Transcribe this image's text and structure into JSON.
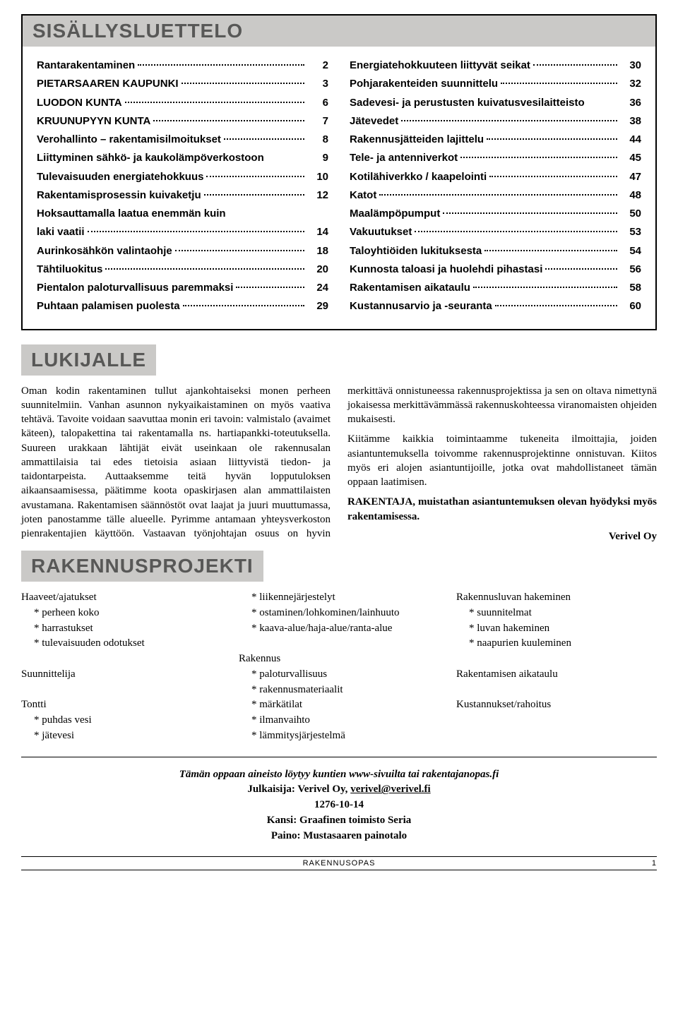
{
  "sections": {
    "toc": "SISÄLLYSLUETTELO",
    "reader": "LUKIJALLE",
    "project": "RAKENNUSPROJEKTI"
  },
  "toc_left": [
    {
      "label": "Rantarakentaminen",
      "page": "2"
    },
    {
      "label": "PIETARSAAREN KAUPUNKI",
      "page": "3"
    },
    {
      "label": "LUODON KUNTA",
      "page": "6"
    },
    {
      "label": "KRUUNUPYYN KUNTA",
      "page": "7"
    },
    {
      "label": "Verohallinto – rakentamisilmoitukset",
      "page": "8"
    },
    {
      "label": "Liittyminen sähkö- ja kaukolämpöverkostoon",
      "page": "9",
      "nodots": true
    },
    {
      "label": "Tulevaisuuden energiatehokkuus",
      "page": "10"
    },
    {
      "label": "Rakentamisprosessin kuivaketju",
      "page": "12"
    },
    {
      "label": "Hoksauttamalla laatua enemmän kuin",
      "cont": true
    },
    {
      "label": "laki vaatii",
      "page": "14"
    },
    {
      "label": "Aurinkosähkön valintaohje",
      "page": "18"
    },
    {
      "label": "Tähtiluokitus",
      "page": "20"
    },
    {
      "label": "Pientalon paloturvallisuus paremmaksi",
      "page": "24"
    },
    {
      "label": "Puhtaan palamisen puolesta",
      "page": "29"
    }
  ],
  "toc_right": [
    {
      "label": "Energiatehokkuuteen liittyvät seikat",
      "page": "30"
    },
    {
      "label": "Pohjarakenteiden suunnittelu",
      "page": "32"
    },
    {
      "label": "Sadevesi- ja perustusten kuivatusvesilaitteisto",
      "page": "36",
      "nodots": true
    },
    {
      "label": "Jätevedet",
      "page": "38"
    },
    {
      "label": "Rakennusjätteiden lajittelu",
      "page": "44"
    },
    {
      "label": "Tele- ja antenniverkot",
      "page": "45"
    },
    {
      "label": "Kotilähiverkko / kaapelointi",
      "page": "47"
    },
    {
      "label": "Katot",
      "page": "48"
    },
    {
      "label": "Maalämpöpumput",
      "page": "50"
    },
    {
      "label": "Vakuutukset",
      "page": "53"
    },
    {
      "label": "Taloyhtiöiden lukituksesta",
      "page": "54"
    },
    {
      "label": "Kunnosta taloasi ja huolehdi pihastasi",
      "page": "56"
    },
    {
      "label": "Rakentamisen aikataulu",
      "page": "58"
    },
    {
      "label": "Kustannusarvio ja -seuranta",
      "page": "60"
    }
  ],
  "reader_paras": [
    "Oman kodin rakentaminen tullut ajankohtaiseksi monen perheen suunnitelmiin. Vanhan asunnon nykyaikaistaminen on myös vaativa tehtävä. Tavoite voidaan saavuttaa monin eri tavoin: valmistalo (avaimet käteen), talopakettina tai rakentamalla ns. hartiapankki-toteutuksella. Suureen urakkaan lähtijät eivät useinkaan ole rakennusalan ammattilaisia tai edes tietoisia asiaan liittyvistä tiedon- ja taidontarpeista. Auttaaksemme teitä hyvän lopputuloksen aikaansaamisessa, päätimme koota opaskirjasen alan ammattilaisten avustamana. Rakentamisen säännöstöt ovat laajat ja juuri muuttumassa, joten panostamme tälle alueelle. Pyrimme antamaan yhteysverkoston pienrakentajien käyttöön. Vastaavan työnjohtajan osuus on hyvin merkittävä onnistuneessa rakennusprojektissa ja sen on oltava nimettynä jokaisessa merkittävämmässä rakennuskohteessa viranomaisten ohjeiden mukaisesti.",
    "Kiitämme kaikkia toimintaamme tukeneita ilmoittajia, joiden asiantuntemuksella toivomme rakennusprojektinne onnistuvan. Kiitos myös eri alojen asiantuntijoille, jotka ovat mahdollistaneet tämän oppaan laatimisen."
  ],
  "reader_bold": "RAKENTAJA, muistathan asiantuntemuksen olevan hyödyksi myös rakentamisessa.",
  "reader_sign": "Verivel Oy",
  "project_cols": [
    [
      {
        "t": "Haaveet/ajatukset"
      },
      {
        "t": "perheen koko",
        "sub": true
      },
      {
        "t": "harrastukset",
        "sub": true
      },
      {
        "t": "tulevaisuuden odotukset",
        "sub": true
      },
      {
        "t": " ",
        "blank": true
      },
      {
        "t": "Suunnittelija"
      },
      {
        "t": " ",
        "blank": true
      },
      {
        "t": "Tontti"
      },
      {
        "t": "puhdas vesi",
        "sub": true
      },
      {
        "t": "jätevesi",
        "sub": true
      }
    ],
    [
      {
        "t": "liikennejärjestelyt",
        "sub": true
      },
      {
        "t": "ostaminen/lohkominen/lainhuuto",
        "sub": true
      },
      {
        "t": "kaava-alue/haja-alue/ranta-alue",
        "sub": true
      },
      {
        "t": " ",
        "blank": true
      },
      {
        "t": "Rakennus"
      },
      {
        "t": "paloturvallisuus",
        "sub": true
      },
      {
        "t": "rakennusmateriaalit",
        "sub": true
      },
      {
        "t": "märkätilat",
        "sub": true
      },
      {
        "t": "ilmanvaihto",
        "sub": true
      },
      {
        "t": "lämmitysjärjestelmä",
        "sub": true
      }
    ],
    [
      {
        "t": "Rakennusluvan hakeminen"
      },
      {
        "t": "suunnitelmat",
        "sub": true
      },
      {
        "t": "luvan hakeminen",
        "sub": true
      },
      {
        "t": "naapurien kuuleminen",
        "sub": true
      },
      {
        "t": " ",
        "blank": true
      },
      {
        "t": "Rakentamisen aikataulu"
      },
      {
        "t": " ",
        "blank": true
      },
      {
        "t": "Kustannukset/rahoitus"
      }
    ]
  ],
  "footer": {
    "line1": "Tämän oppaan aineisto löytyy kuntien www-sivuilta tai rakentajanopas.fi",
    "publisher_label": "Julkaisija: Verivel Oy, ",
    "email": "verivel@verivel.fi",
    "code": "1276-10-14",
    "cover": "Kansi: Graafinen toimisto Seria",
    "print": "Paino: Mustasaaren painotalo"
  },
  "bottom": {
    "center": "RAKENNUSOPAS",
    "page": "1"
  }
}
